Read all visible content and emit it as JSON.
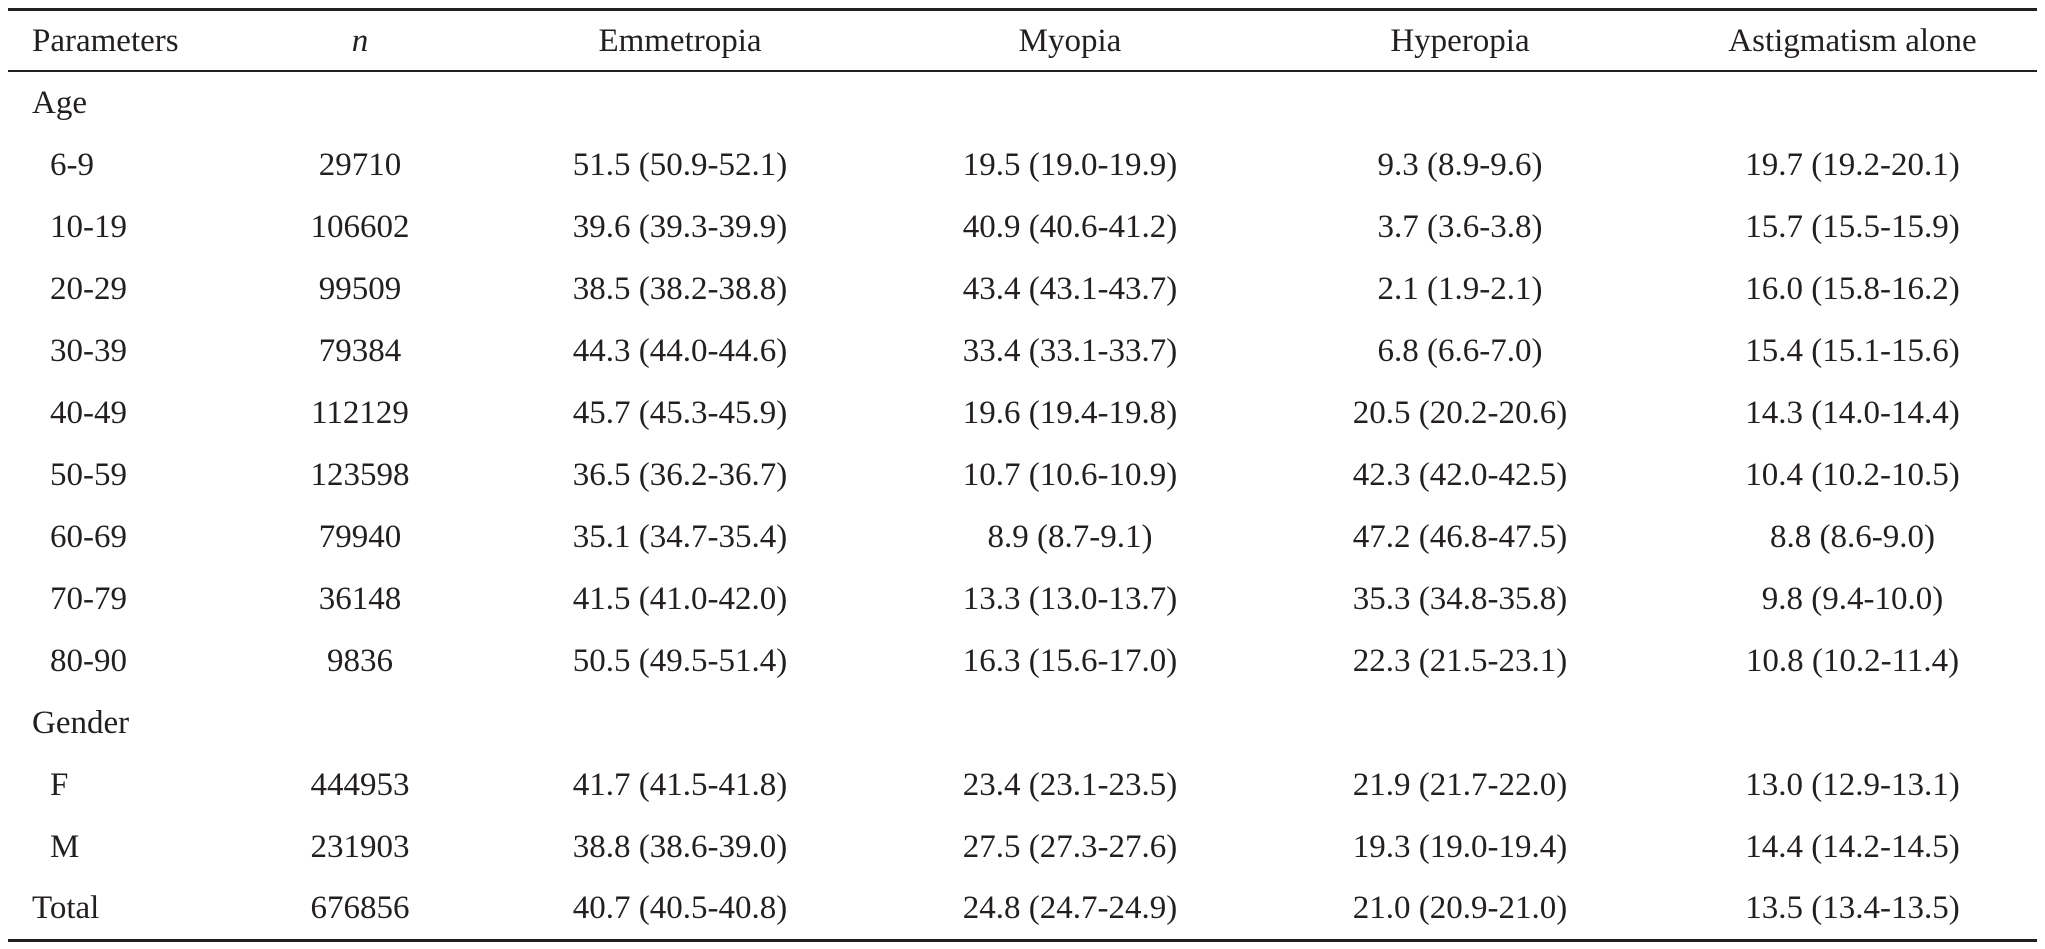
{
  "header": {
    "parameters": "Parameters",
    "n": "n",
    "emmetropia": "Emmetropia",
    "myopia": "Myopia",
    "hyperopia": "Hyperopia",
    "astigmatism": "Astigmatism alone"
  },
  "groups": {
    "age": "Age",
    "gender": "Gender"
  },
  "rows": [
    {
      "label": "6-9",
      "n": "29710",
      "emm": "51.5 (50.9-52.1)",
      "myo": "19.5 (19.0-19.9)",
      "hyp": "9.3 (8.9-9.6)",
      "ast": "19.7 (19.2-20.1)"
    },
    {
      "label": "10-19",
      "n": "106602",
      "emm": "39.6 (39.3-39.9)",
      "myo": "40.9 (40.6-41.2)",
      "hyp": "3.7 (3.6-3.8)",
      "ast": "15.7 (15.5-15.9)"
    },
    {
      "label": "20-29",
      "n": "99509",
      "emm": "38.5 (38.2-38.8)",
      "myo": "43.4 (43.1-43.7)",
      "hyp": "2.1 (1.9-2.1)",
      "ast": "16.0 (15.8-16.2)"
    },
    {
      "label": "30-39",
      "n": "79384",
      "emm": "44.3 (44.0-44.6)",
      "myo": "33.4 (33.1-33.7)",
      "hyp": "6.8 (6.6-7.0)",
      "ast": "15.4 (15.1-15.6)"
    },
    {
      "label": "40-49",
      "n": "112129",
      "emm": "45.7 (45.3-45.9)",
      "myo": "19.6 (19.4-19.8)",
      "hyp": "20.5 (20.2-20.6)",
      "ast": "14.3 (14.0-14.4)"
    },
    {
      "label": "50-59",
      "n": "123598",
      "emm": "36.5 (36.2-36.7)",
      "myo": "10.7 (10.6-10.9)",
      "hyp": "42.3 (42.0-42.5)",
      "ast": "10.4 (10.2-10.5)"
    },
    {
      "label": "60-69",
      "n": "79940",
      "emm": "35.1 (34.7-35.4)",
      "myo": "8.9 (8.7-9.1)",
      "hyp": "47.2 (46.8-47.5)",
      "ast": "8.8 (8.6-9.0)"
    },
    {
      "label": "70-79",
      "n": "36148",
      "emm": "41.5 (41.0-42.0)",
      "myo": "13.3 (13.0-13.7)",
      "hyp": "35.3 (34.8-35.8)",
      "ast": "9.8 (9.4-10.0)"
    },
    {
      "label": "80-90",
      "n": "9836",
      "emm": "50.5 (49.5-51.4)",
      "myo": "16.3 (15.6-17.0)",
      "hyp": "22.3 (21.5-23.1)",
      "ast": "10.8 (10.2-11.4)"
    },
    {
      "label": "F",
      "n": "444953",
      "emm": "41.7 (41.5-41.8)",
      "myo": "23.4 (23.1-23.5)",
      "hyp": "21.9 (21.7-22.0)",
      "ast": "13.0 (12.9-13.1)"
    },
    {
      "label": "M",
      "n": "231903",
      "emm": "38.8 (38.6-39.0)",
      "myo": "27.5 (27.3-27.6)",
      "hyp": "19.3 (19.0-19.4)",
      "ast": "14.4 (14.2-14.5)"
    },
    {
      "label": "Total",
      "n": "676856",
      "emm": "40.7 (40.5-40.8)",
      "myo": "24.8 (24.7-24.9)",
      "hyp": "21.0 (20.9-21.0)",
      "ast": "13.5 (13.4-13.5)"
    }
  ]
}
